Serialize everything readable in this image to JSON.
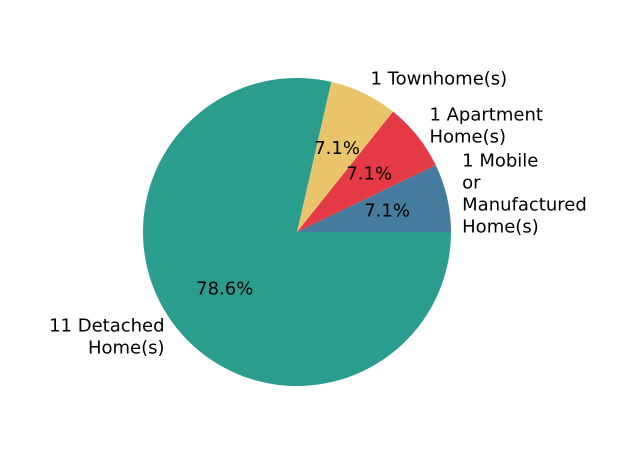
{
  "chart_data": {
    "type": "pie",
    "title": "",
    "slices": [
      {
        "label": "1 Mobile or Manufactured Home(s)",
        "value": 1,
        "percent_label": "7.1%",
        "color": "#457b9d"
      },
      {
        "label": "1 Apartment Home(s)",
        "value": 1,
        "percent_label": "7.1%",
        "color": "#e63946"
      },
      {
        "label": "1 Townhome(s)",
        "value": 1,
        "percent_label": "7.1%",
        "color": "#e9c46a"
      },
      {
        "label": "11 Detached Home(s)",
        "value": 11,
        "percent_label": "78.6%",
        "color": "#2a9d8f"
      }
    ],
    "label_lines": [
      [
        "1 Mobile",
        "or",
        "Manufactured",
        "Home(s)"
      ],
      [
        "1 Apartment",
        "Home(s)"
      ],
      [
        "1 Townhome(s)"
      ],
      [
        "11 Detached",
        "Home(s)"
      ]
    ],
    "legend": "none"
  }
}
